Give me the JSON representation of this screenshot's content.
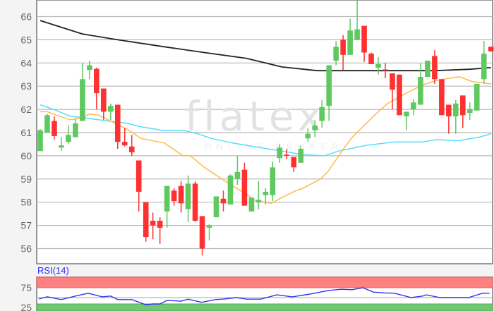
{
  "chart_data": {
    "type": "candlestick",
    "title": "",
    "xlabel": "",
    "ylabel": "",
    "ylim": [
      55.3,
      66.7
    ],
    "yticks": [
      56,
      57,
      58,
      59,
      60,
      61,
      62,
      63,
      64,
      65,
      66
    ],
    "grid": true,
    "watermark": {
      "brand": "flatex",
      "tagline": "ONLINE BROKER"
    },
    "colors": {
      "up": "#5fc85f",
      "down": "#ff3030",
      "ma_long": "#222222",
      "ma_mid": "#55ddff",
      "ma_short": "#ffbb44",
      "rsi": "#3333ee",
      "overbought": "#ff8080",
      "oversold": "#70c870"
    },
    "candles": [
      [
        60.2,
        61.15,
        60.2,
        61.1
      ],
      [
        61.0,
        61.8,
        61.0,
        61.75
      ],
      [
        61.5,
        61.7,
        60.7,
        60.85
      ],
      [
        60.35,
        60.8,
        60.2,
        60.45
      ],
      [
        60.6,
        61.3,
        60.5,
        60.9
      ],
      [
        60.8,
        61.6,
        60.8,
        61.4
      ],
      [
        61.5,
        64.0,
        61.5,
        63.3
      ],
      [
        63.7,
        64.1,
        63.3,
        63.9
      ],
      [
        63.75,
        63.8,
        62.0,
        62.7
      ],
      [
        62.9,
        62.9,
        61.55,
        61.9
      ],
      [
        61.9,
        62.25,
        61.55,
        62.15
      ],
      [
        62.2,
        62.2,
        60.3,
        60.6
      ],
      [
        60.6,
        61.2,
        60.4,
        60.45
      ],
      [
        60.4,
        60.9,
        60.0,
        60.15
      ],
      [
        59.8,
        59.8,
        57.6,
        58.45
      ],
      [
        58.0,
        58.0,
        56.3,
        56.5
      ],
      [
        57.2,
        57.55,
        56.4,
        57.0
      ],
      [
        57.2,
        57.35,
        56.2,
        56.9
      ],
      [
        57.6,
        58.7,
        56.9,
        58.7
      ],
      [
        58.5,
        58.6,
        57.85,
        58.05
      ],
      [
        58.7,
        58.9,
        57.55,
        57.95
      ],
      [
        57.7,
        59.15,
        57.15,
        58.8
      ],
      [
        58.8,
        58.9,
        57.15,
        57.2
      ],
      [
        57.4,
        57.4,
        55.7,
        56.0
      ],
      [
        56.9,
        57.05,
        56.35,
        57.0
      ],
      [
        57.35,
        58.25,
        57.35,
        58.25
      ],
      [
        58.15,
        58.5,
        57.6,
        57.95
      ],
      [
        57.9,
        59.2,
        57.9,
        59.15
      ],
      [
        59.0,
        60.0,
        58.75,
        59.3
      ],
      [
        59.4,
        59.7,
        57.85,
        57.85
      ],
      [
        57.6,
        58.2,
        57.6,
        58.2
      ],
      [
        58.0,
        58.9,
        57.7,
        58.1
      ],
      [
        58.3,
        58.6,
        57.9,
        58.45
      ],
      [
        58.3,
        59.75,
        58.05,
        59.5
      ],
      [
        59.9,
        60.5,
        59.7,
        60.35
      ],
      [
        60.05,
        60.3,
        59.85,
        60.0
      ],
      [
        59.95,
        59.95,
        59.3,
        59.5
      ],
      [
        59.7,
        60.45,
        59.7,
        60.3
      ],
      [
        60.75,
        61.2,
        60.6,
        60.95
      ],
      [
        61.1,
        61.55,
        60.8,
        61.3
      ],
      [
        61.5,
        62.4,
        61.2,
        62.1
      ],
      [
        62.15,
        63.9,
        61.5,
        63.9
      ],
      [
        64.1,
        64.95,
        63.9,
        64.7
      ],
      [
        65.0,
        65.2,
        63.7,
        64.35
      ],
      [
        64.35,
        65.9,
        64.35,
        65.4
      ],
      [
        65.0,
        66.7,
        65.0,
        65.45
      ],
      [
        65.6,
        65.6,
        64.05,
        64.45
      ],
      [
        64.4,
        64.45,
        63.95,
        63.95
      ],
      [
        63.8,
        64.25,
        63.5,
        63.95
      ],
      [
        63.72,
        64.0,
        63.35,
        63.68
      ],
      [
        63.55,
        63.55,
        62.0,
        62.85
      ],
      [
        63.5,
        63.5,
        61.75,
        61.75
      ],
      [
        61.7,
        61.9,
        61.1,
        61.9
      ],
      [
        62.0,
        62.45,
        61.75,
        62.3
      ],
      [
        62.2,
        64.0,
        62.2,
        63.4
      ],
      [
        63.4,
        64.1,
        63.4,
        64.1
      ],
      [
        64.3,
        64.55,
        63.1,
        63.3
      ],
      [
        63.3,
        63.3,
        61.75,
        61.75
      ],
      [
        62.2,
        62.2,
        60.95,
        61.7
      ],
      [
        61.7,
        62.4,
        60.95,
        62.25
      ],
      [
        62.6,
        62.6,
        61.2,
        61.75
      ],
      [
        61.85,
        62.3,
        61.55,
        62.0
      ],
      [
        61.95,
        63.1,
        61.95,
        63.1
      ],
      [
        63.3,
        64.95,
        63.1,
        64.4
      ],
      [
        64.7,
        64.7,
        64.5,
        64.5
      ]
    ],
    "candle_fields": [
      "open",
      "high",
      "low",
      "close"
    ],
    "moving_averages": [
      {
        "id": "ma_long",
        "points": [
          [
            0,
            65.83
          ],
          [
            6,
            65.25
          ],
          [
            11,
            65.0
          ],
          [
            17.6,
            64.7
          ],
          [
            23.3,
            64.45
          ],
          [
            29.3,
            64.2
          ],
          [
            34.3,
            63.83
          ],
          [
            39.3,
            63.67
          ],
          [
            46,
            63.67
          ],
          [
            56,
            63.67
          ],
          [
            61,
            63.73
          ],
          [
            64,
            63.8
          ]
        ]
      },
      {
        "id": "ma_mid",
        "points": [
          [
            0,
            62.2
          ],
          [
            2.3,
            61.95
          ],
          [
            4.3,
            61.7
          ],
          [
            6,
            61.65
          ],
          [
            8.3,
            61.55
          ],
          [
            12.3,
            61.4
          ],
          [
            14.3,
            61.25
          ],
          [
            17.3,
            61.1
          ],
          [
            20.3,
            61.1
          ],
          [
            22.3,
            60.95
          ],
          [
            24.3,
            60.75
          ],
          [
            27.3,
            60.55
          ],
          [
            29.3,
            60.45
          ],
          [
            31.3,
            60.35
          ],
          [
            34.3,
            60.2
          ],
          [
            37.3,
            60.05
          ],
          [
            40.3,
            60.0
          ],
          [
            42.3,
            60.2
          ],
          [
            46.3,
            60.45
          ],
          [
            50.3,
            60.6
          ],
          [
            54.3,
            60.6
          ],
          [
            56.3,
            60.7
          ],
          [
            59.3,
            60.65
          ],
          [
            62.3,
            60.8
          ],
          [
            64,
            60.95
          ]
        ]
      },
      {
        "id": "ma_short",
        "points": [
          [
            0,
            61.9
          ],
          [
            1,
            61.9
          ],
          [
            2.3,
            61.75
          ],
          [
            4.3,
            61.55
          ],
          [
            6,
            61.65
          ],
          [
            7,
            61.8
          ],
          [
            8.3,
            61.75
          ],
          [
            10.3,
            61.45
          ],
          [
            12.3,
            61.15
          ],
          [
            14.3,
            60.75
          ],
          [
            17.6,
            60.55
          ],
          [
            20.3,
            60.0
          ],
          [
            21.3,
            60.0
          ],
          [
            23.3,
            59.5
          ],
          [
            25.3,
            59.1
          ],
          [
            27.3,
            58.7
          ],
          [
            29.3,
            58.35
          ],
          [
            30.3,
            58.1
          ],
          [
            32.8,
            57.95
          ],
          [
            34.3,
            58.2
          ],
          [
            36.3,
            58.5
          ],
          [
            37.3,
            58.6
          ],
          [
            39.8,
            59.0
          ],
          [
            40.8,
            59.3
          ],
          [
            42.3,
            59.95
          ],
          [
            42.6,
            60.1
          ],
          [
            44.3,
            60.8
          ],
          [
            47.3,
            61.7
          ],
          [
            49.3,
            62.25
          ],
          [
            52.3,
            62.75
          ],
          [
            54.3,
            63.05
          ],
          [
            56.3,
            63.25
          ],
          [
            59.3,
            63.4
          ],
          [
            59.6,
            63.4
          ],
          [
            61.3,
            63.2
          ],
          [
            64,
            63.1
          ]
        ]
      }
    ],
    "rsi": {
      "label": "RSI(14)",
      "yticks": [
        75,
        25
      ],
      "overbought": 75,
      "oversold": 25,
      "points": [
        [
          -0.2,
          46.5
        ],
        [
          1,
          52
        ],
        [
          3,
          45
        ],
        [
          5,
          54
        ],
        [
          6.8,
          61
        ],
        [
          8.8,
          52
        ],
        [
          10,
          54
        ],
        [
          11,
          45
        ],
        [
          13,
          45
        ],
        [
          15,
          32
        ],
        [
          16,
          34
        ],
        [
          17,
          34
        ],
        [
          18,
          43
        ],
        [
          20,
          41
        ],
        [
          21,
          46
        ],
        [
          22.9,
          38
        ],
        [
          24.9,
          45
        ],
        [
          25.9,
          46
        ],
        [
          27.9,
          50
        ],
        [
          29.3,
          46
        ],
        [
          31.3,
          46
        ],
        [
          33.6,
          57
        ],
        [
          35.8,
          52
        ],
        [
          38.3,
          59
        ],
        [
          40.9,
          68
        ],
        [
          42.8,
          71
        ],
        [
          44.3,
          70
        ],
        [
          45.8,
          75
        ],
        [
          47.3,
          64
        ],
        [
          48.8,
          62
        ],
        [
          50.3,
          61
        ],
        [
          52.7,
          50
        ],
        [
          54.3,
          54
        ],
        [
          54.8,
          57
        ],
        [
          56.8,
          50
        ],
        [
          58.3,
          50
        ],
        [
          59.3,
          50
        ],
        [
          60.8,
          50
        ],
        [
          62.8,
          61
        ],
        [
          63.8,
          61
        ]
      ]
    }
  }
}
